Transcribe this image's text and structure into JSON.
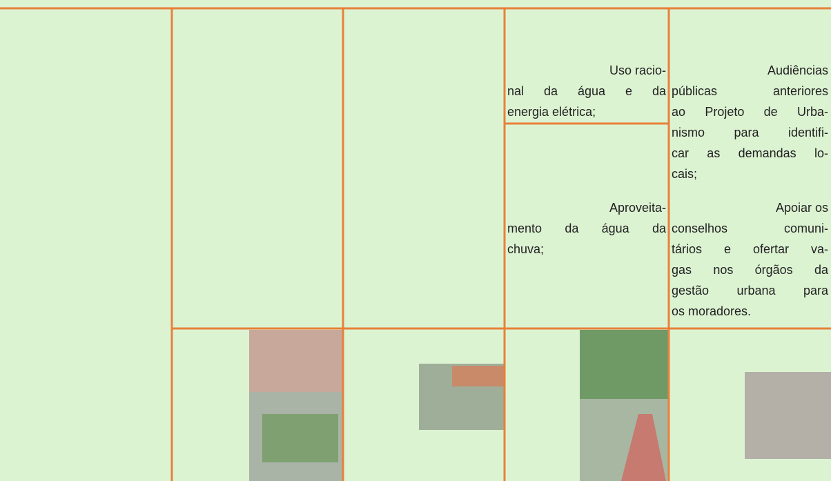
{
  "table": {
    "cells": [
      {
        "paragraphs": [
          [
            "Uso racio-",
            "nal da água e da",
            "energia elétrica;"
          ]
        ]
      },
      {
        "paragraphs": [
          [
            "Aproveita-",
            "mento da água da",
            "chuva;"
          ]
        ]
      },
      {
        "paragraphs": [
          [
            "Audiências",
            "públicas anteriores",
            "ao Projeto de Urba-",
            "nismo para identifi-",
            "car as demandas lo-",
            "cais;"
          ],
          [
            "Apoiar os",
            "conselhos comuni-",
            "tários e ofertar va-",
            "gas nos órgãos da",
            "gestão urbana para",
            "os moradores."
          ]
        ]
      }
    ]
  }
}
